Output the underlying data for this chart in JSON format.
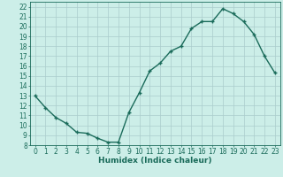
{
  "x": [
    0,
    1,
    2,
    3,
    4,
    5,
    6,
    7,
    8,
    9,
    10,
    11,
    12,
    13,
    14,
    15,
    16,
    17,
    18,
    19,
    20,
    21,
    22,
    23
  ],
  "y": [
    13,
    11.8,
    10.8,
    10.2,
    9.3,
    9.2,
    8.7,
    8.3,
    8.3,
    11.3,
    13.3,
    15.5,
    16.3,
    17.5,
    18.0,
    19.8,
    20.5,
    20.5,
    21.8,
    21.3,
    20.5,
    19.2,
    17.0,
    15.3
  ],
  "line_color": "#1a6b5a",
  "marker": "+",
  "marker_size": 3.5,
  "marker_lw": 1.0,
  "line_width": 1.0,
  "xlabel": "Humidex (Indice chaleur)",
  "xlim": [
    -0.5,
    23.5
  ],
  "ylim": [
    8,
    22.5
  ],
  "yticks": [
    8,
    9,
    10,
    11,
    12,
    13,
    14,
    15,
    16,
    17,
    18,
    19,
    20,
    21,
    22
  ],
  "xticks": [
    0,
    1,
    2,
    3,
    4,
    5,
    6,
    7,
    8,
    9,
    10,
    11,
    12,
    13,
    14,
    15,
    16,
    17,
    18,
    19,
    20,
    21,
    22,
    23
  ],
  "background_color": "#cceee8",
  "grid_color": "#aacccc",
  "tick_color": "#1a6b5a",
  "label_color": "#1a6b5a",
  "xlabel_fontsize": 6.5,
  "tick_fontsize": 5.5
}
